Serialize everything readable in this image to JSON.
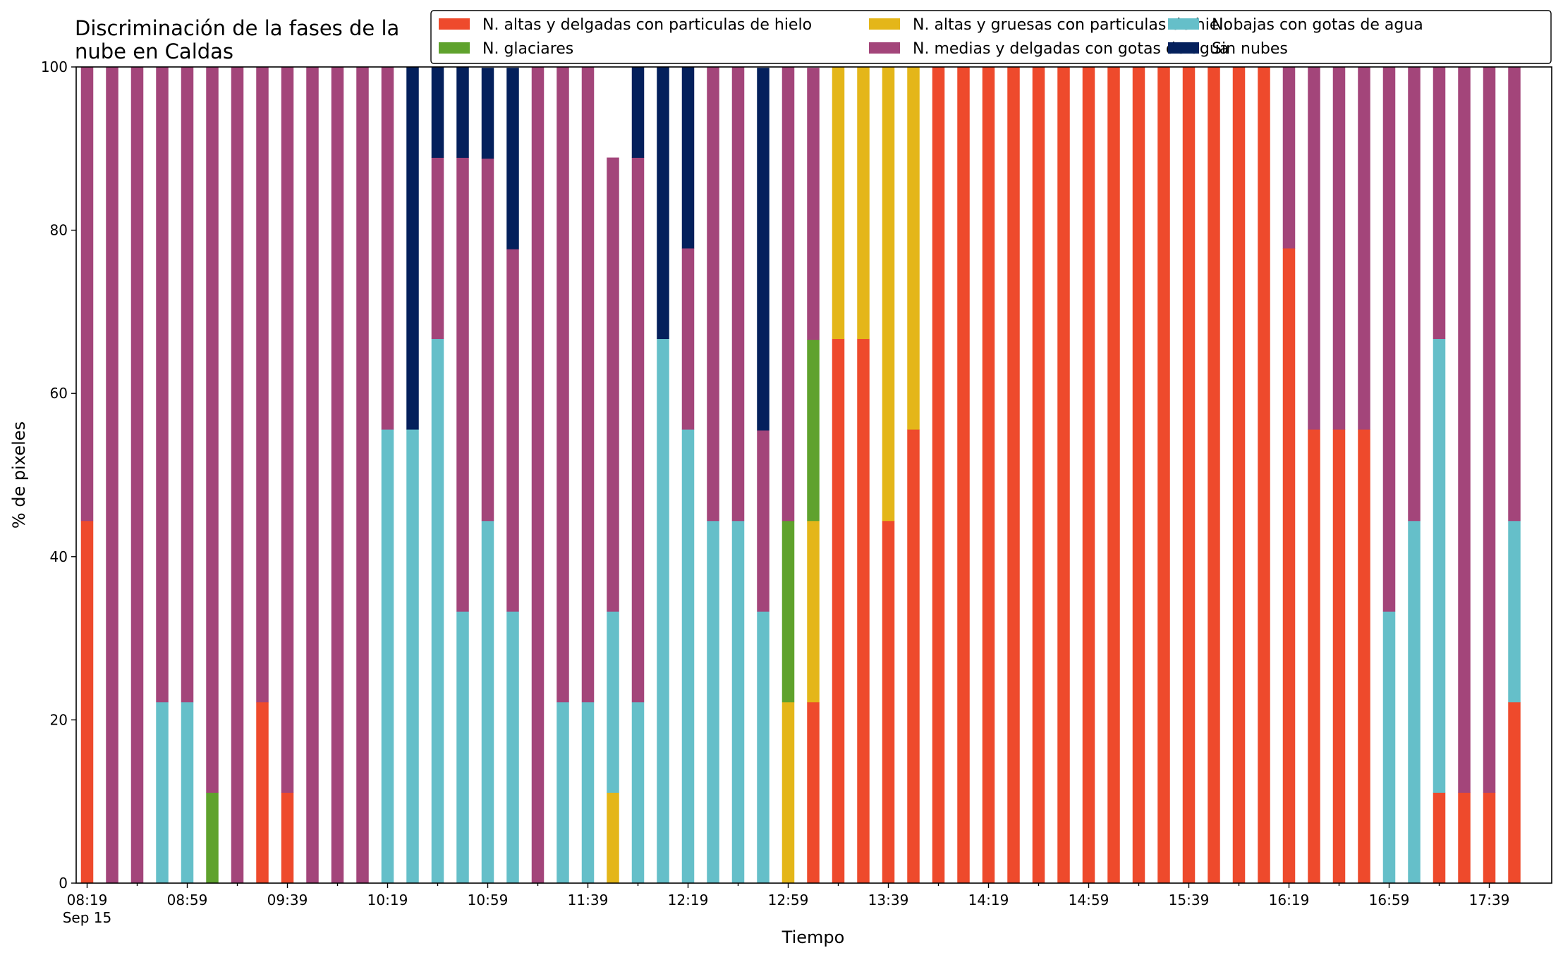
{
  "chart_data": {
    "type": "bar",
    "stacked": true,
    "title_lines": [
      "Discriminación de la fases de la",
      "nube en Caldas"
    ],
    "xlabel": "Tiempo",
    "ylabel": "% de pixeles",
    "ylim": [
      0,
      100
    ],
    "yticks": [
      "0",
      "20",
      "40",
      "60",
      "80",
      "100"
    ],
    "xtick_labels": [
      "08:19",
      "08:59",
      "09:39",
      "10:19",
      "10:59",
      "11:39",
      "12:19",
      "12:59",
      "13:39",
      "14:19",
      "14:59",
      "15:39",
      "16:19",
      "16:59",
      "17:39"
    ],
    "xtick_sublabel": "Sep 15",
    "grid": false,
    "legend_position": "top-right",
    "legend_columns": 3,
    "categories": [
      "08:19",
      "08:29",
      "08:39",
      "08:49",
      "08:59",
      "09:09",
      "09:19",
      "09:29",
      "09:39",
      "09:49",
      "09:59",
      "10:09",
      "10:19",
      "10:29",
      "10:39",
      "10:49",
      "10:59",
      "11:09",
      "11:19",
      "11:29",
      "11:39",
      "11:49",
      "11:59",
      "12:09",
      "12:19",
      "12:29",
      "12:39",
      "12:49",
      "12:59",
      "13:09",
      "13:19",
      "13:29",
      "13:39",
      "13:49",
      "13:59",
      "14:09",
      "14:19",
      "14:29",
      "14:39",
      "14:49",
      "14:59",
      "15:09",
      "15:19",
      "15:29",
      "15:39",
      "15:49",
      "15:59",
      "16:09",
      "16:19",
      "16:29",
      "16:39",
      "16:49",
      "16:59",
      "17:09",
      "17:19",
      "17:29",
      "17:39",
      "17:49"
    ],
    "series": [
      {
        "name": "N. altas y delgadas con particulas de hielo",
        "color": "#ee4a2c",
        "values": [
          44.4,
          0,
          0,
          0,
          0,
          0,
          0,
          22.2,
          11.1,
          0,
          0,
          0,
          0,
          0,
          0,
          0,
          0,
          0,
          0,
          0,
          0,
          0,
          0,
          0,
          0,
          0,
          0,
          0,
          0,
          22.2,
          66.7,
          66.7,
          44.4,
          55.6,
          100,
          100,
          100,
          100,
          100,
          100,
          100,
          100,
          100,
          100,
          100,
          100,
          100,
          100,
          77.8,
          55.6,
          55.6,
          55.6,
          0,
          0,
          11.1,
          11.1,
          11.1,
          22.2
        ]
      },
      {
        "name": "N. altas y gruesas con particulas de hielo",
        "color": "#e4b619",
        "values": [
          0,
          0,
          0,
          0,
          0,
          0,
          0,
          0,
          0,
          0,
          0,
          0,
          0,
          0,
          0,
          0,
          0,
          0,
          0,
          0,
          0,
          11.1,
          0,
          0,
          0,
          0,
          0,
          0,
          22.2,
          22.2,
          33.3,
          33.3,
          55.6,
          44.4,
          0,
          0,
          0,
          0,
          0,
          0,
          0,
          0,
          0,
          0,
          0,
          0,
          0,
          0,
          0,
          0,
          0,
          0,
          0,
          0,
          0,
          0,
          0,
          0
        ]
      },
      {
        "name": "N. bajas con gotas de agua",
        "color": "#65bfc9",
        "values": [
          0,
          0,
          0,
          22.2,
          22.2,
          0,
          0,
          0,
          0,
          0,
          0,
          0,
          55.6,
          55.6,
          66.7,
          33.3,
          44.4,
          33.3,
          0,
          22.2,
          22.2,
          22.2,
          22.2,
          66.7,
          55.6,
          44.4,
          44.4,
          33.3,
          0,
          0,
          0,
          0,
          0,
          0,
          0,
          0,
          0,
          0,
          0,
          0,
          0,
          0,
          0,
          0,
          0,
          0,
          0,
          0,
          0,
          0,
          0,
          0,
          33.3,
          44.4,
          55.6,
          0,
          0,
          22.2
        ]
      },
      {
        "name": "N. glaciares",
        "color": "#5fa22d",
        "values": [
          0,
          0,
          0,
          0,
          0,
          11.1,
          0,
          0,
          0,
          0,
          0,
          0,
          0,
          0,
          0,
          0,
          0,
          0,
          0,
          0,
          0,
          0,
          0,
          0,
          0,
          0,
          0,
          0,
          22.2,
          22.2,
          0,
          0,
          0,
          0,
          0,
          0,
          0,
          0,
          0,
          0,
          0,
          0,
          0,
          0,
          0,
          0,
          0,
          0,
          0,
          0,
          0,
          0,
          0,
          0,
          0,
          0,
          0,
          0
        ]
      },
      {
        "name": "N. medias y delgadas con gotas de agua",
        "color": "#a3457a",
        "values": [
          55.6,
          100,
          100,
          77.8,
          77.8,
          88.9,
          100,
          77.8,
          88.9,
          100,
          100,
          100,
          44.4,
          0,
          22.2,
          55.6,
          44.4,
          44.4,
          100,
          77.8,
          77.8,
          55.6,
          66.7,
          0,
          22.2,
          55.6,
          55.6,
          22.2,
          55.6,
          33.3,
          0,
          0,
          0,
          0,
          0,
          0,
          0,
          0,
          0,
          0,
          0,
          0,
          0,
          0,
          0,
          0,
          0,
          0,
          22.2,
          44.4,
          44.4,
          44.4,
          66.7,
          55.6,
          33.3,
          88.9,
          88.9,
          55.6
        ]
      },
      {
        "name": "Sin nubes",
        "color": "#04205c",
        "values": [
          0,
          0,
          0,
          0,
          0,
          0,
          0,
          0,
          0,
          0,
          0,
          0,
          0,
          44.4,
          11.1,
          11.1,
          11.1,
          22.2,
          0,
          0,
          0,
          0,
          11.1,
          33.3,
          22.2,
          0,
          0,
          44.4,
          0,
          0,
          0,
          0,
          0,
          0,
          0,
          0,
          0,
          0,
          0,
          0,
          0,
          0,
          0,
          0,
          0,
          0,
          0,
          0,
          0,
          0,
          0,
          0,
          0,
          0,
          0,
          0,
          0,
          0
        ]
      }
    ]
  }
}
